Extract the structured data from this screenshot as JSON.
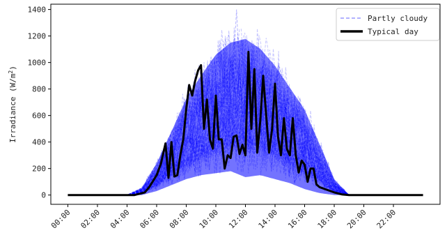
{
  "chart_data": {
    "type": "line",
    "title": "",
    "xlabel": "",
    "ylabel": "Irradiance (W/m²)",
    "ylabel_parts": {
      "main": "Irradiance (W/m",
      "sup": "2",
      "close": ")"
    },
    "x_ticks": [
      "00:00",
      "02:00",
      "04:00",
      "06:00",
      "08:00",
      "10:00",
      "12:00",
      "14:00",
      "16:00",
      "18:00",
      "20:00",
      "22:00"
    ],
    "y_ticks": [
      0,
      200,
      400,
      600,
      800,
      1000,
      1200,
      1400
    ],
    "xlim": [
      0,
      24
    ],
    "ylim": [
      -70,
      1440
    ],
    "grid": false,
    "legend_position": "top-right",
    "colors": {
      "partly_cloudy": "#0000ff",
      "typical_day": "#000000"
    },
    "series": [
      {
        "name": "Partly cloudy",
        "style": "dashed-band",
        "x": [
          4.0,
          5.0,
          6.0,
          7.0,
          8.0,
          9.0,
          10.0,
          11.0,
          12.0,
          13.0,
          14.0,
          15.0,
          16.0,
          17.0,
          18.0,
          19.0
        ],
        "upper": [
          0,
          60,
          260,
          520,
          790,
          980,
          1150,
          1250,
          1280,
          1200,
          1060,
          880,
          700,
          420,
          130,
          0
        ],
        "lower": [
          0,
          0,
          20,
          50,
          80,
          100,
          110,
          120,
          90,
          100,
          80,
          60,
          30,
          10,
          0,
          0
        ],
        "peak": {
          "x": 11.4,
          "y": 1400
        }
      },
      {
        "name": "Typical day",
        "x": [
          0,
          4.5,
          5.2,
          5.5,
          6.0,
          6.3,
          6.6,
          6.8,
          7.0,
          7.2,
          7.4,
          7.6,
          7.8,
          8.0,
          8.2,
          8.4,
          8.6,
          8.8,
          9.0,
          9.2,
          9.4,
          9.6,
          9.8,
          10.0,
          10.2,
          10.4,
          10.6,
          10.8,
          11.0,
          11.2,
          11.4,
          11.6,
          11.8,
          12.0,
          12.2,
          12.4,
          12.6,
          12.8,
          13.0,
          13.2,
          13.4,
          13.6,
          13.8,
          14.0,
          14.2,
          14.4,
          14.6,
          14.8,
          15.0,
          15.2,
          15.4,
          15.6,
          15.8,
          16.0,
          16.2,
          16.4,
          16.6,
          16.8,
          17.0,
          17.5,
          18.0,
          18.5,
          19.0,
          24.0
        ],
        "y": [
          0,
          0,
          20,
          60,
          150,
          240,
          390,
          130,
          400,
          140,
          150,
          300,
          420,
          650,
          830,
          750,
          860,
          940,
          980,
          500,
          720,
          420,
          350,
          750,
          420,
          420,
          200,
          300,
          280,
          440,
          450,
          310,
          380,
          300,
          1080,
          500,
          950,
          320,
          560,
          900,
          600,
          320,
          500,
          840,
          440,
          300,
          580,
          350,
          300,
          580,
          300,
          170,
          260,
          230,
          100,
          200,
          200,
          80,
          60,
          40,
          20,
          5,
          0,
          0
        ]
      }
    ]
  }
}
